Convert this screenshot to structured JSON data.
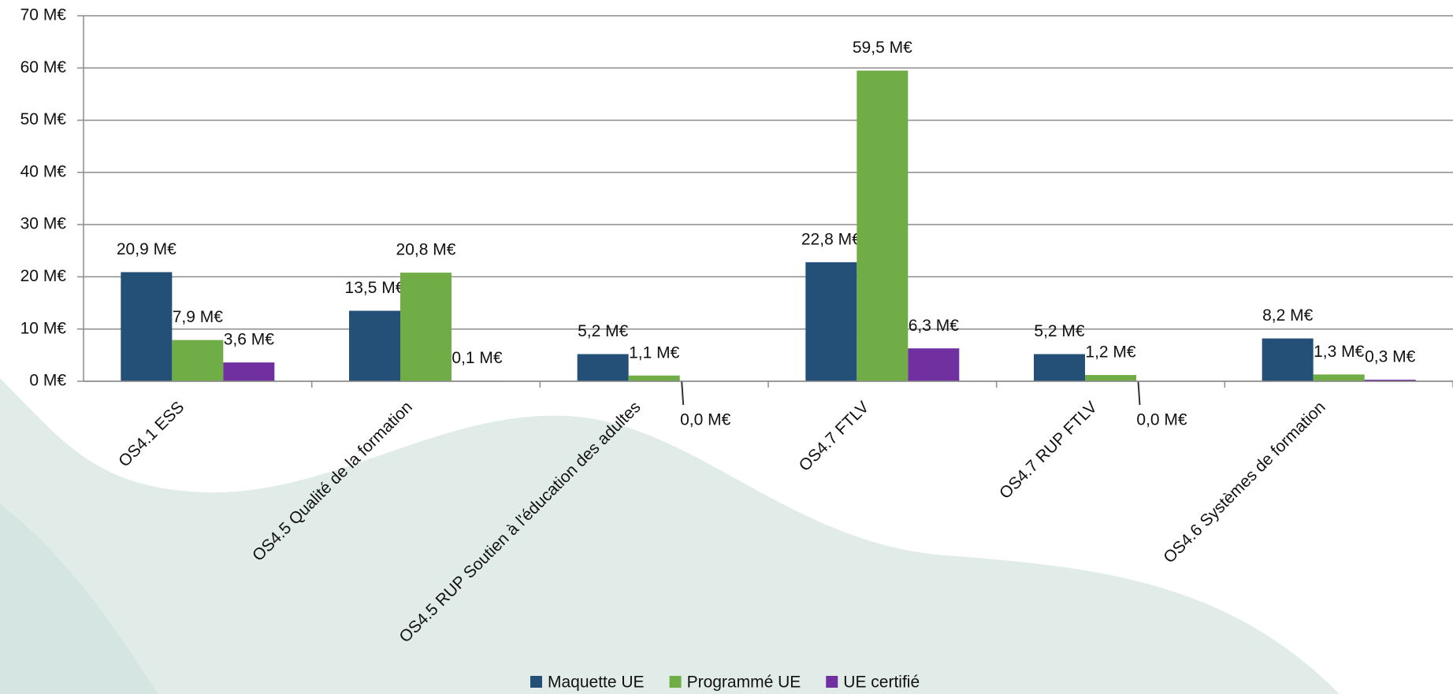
{
  "chart_data": {
    "type": "bar",
    "categories": [
      "OS4.1 ESS",
      "OS4.5 Qualité de la formation",
      "OS4.5 RUP Soutien à l'éducation des adultes",
      "OS4.7 FTLV",
      "OS4.7 RUP FTLV",
      "OS4.6 Systèmes de formation"
    ],
    "series": [
      {
        "name": "Maquette UE",
        "color": "#245078",
        "values": [
          20.9,
          13.5,
          5.2,
          22.8,
          5.2,
          8.2
        ],
        "value_labels": [
          "20,9 M€",
          "13,5 M€",
          "5,2 M€",
          "22,8 M€",
          "5,2 M€",
          "8,2 M€"
        ]
      },
      {
        "name": "Programmé UE",
        "color": "#70ad47",
        "values": [
          7.9,
          20.8,
          1.1,
          59.5,
          1.2,
          1.3
        ],
        "value_labels": [
          "7,9 M€",
          "20,8 M€",
          "1,1 M€",
          "59,5 M€",
          "1,2 M€",
          "1,3 M€"
        ]
      },
      {
        "name": "UE certifié",
        "color": "#7030a0",
        "values": [
          3.6,
          0.1,
          0.0,
          6.3,
          0.0,
          0.3
        ],
        "value_labels": [
          "3,6 M€",
          "0,1 M€",
          "0,0 M€",
          "6,3 M€",
          "0,0 M€",
          "0,3 M€"
        ]
      }
    ],
    "ylim": [
      0,
      70
    ],
    "yticks": [
      {
        "value": 0,
        "label": "0 M€"
      },
      {
        "value": 10,
        "label": "10 M€"
      },
      {
        "value": 20,
        "label": "20 M€"
      },
      {
        "value": 30,
        "label": "30 M€"
      },
      {
        "value": 40,
        "label": "40 M€"
      },
      {
        "value": 50,
        "label": "50 M€"
      },
      {
        "value": 60,
        "label": "60 M€"
      },
      {
        "value": 70,
        "label": "70 M€"
      }
    ],
    "grid": true,
    "legend": "bottom"
  }
}
